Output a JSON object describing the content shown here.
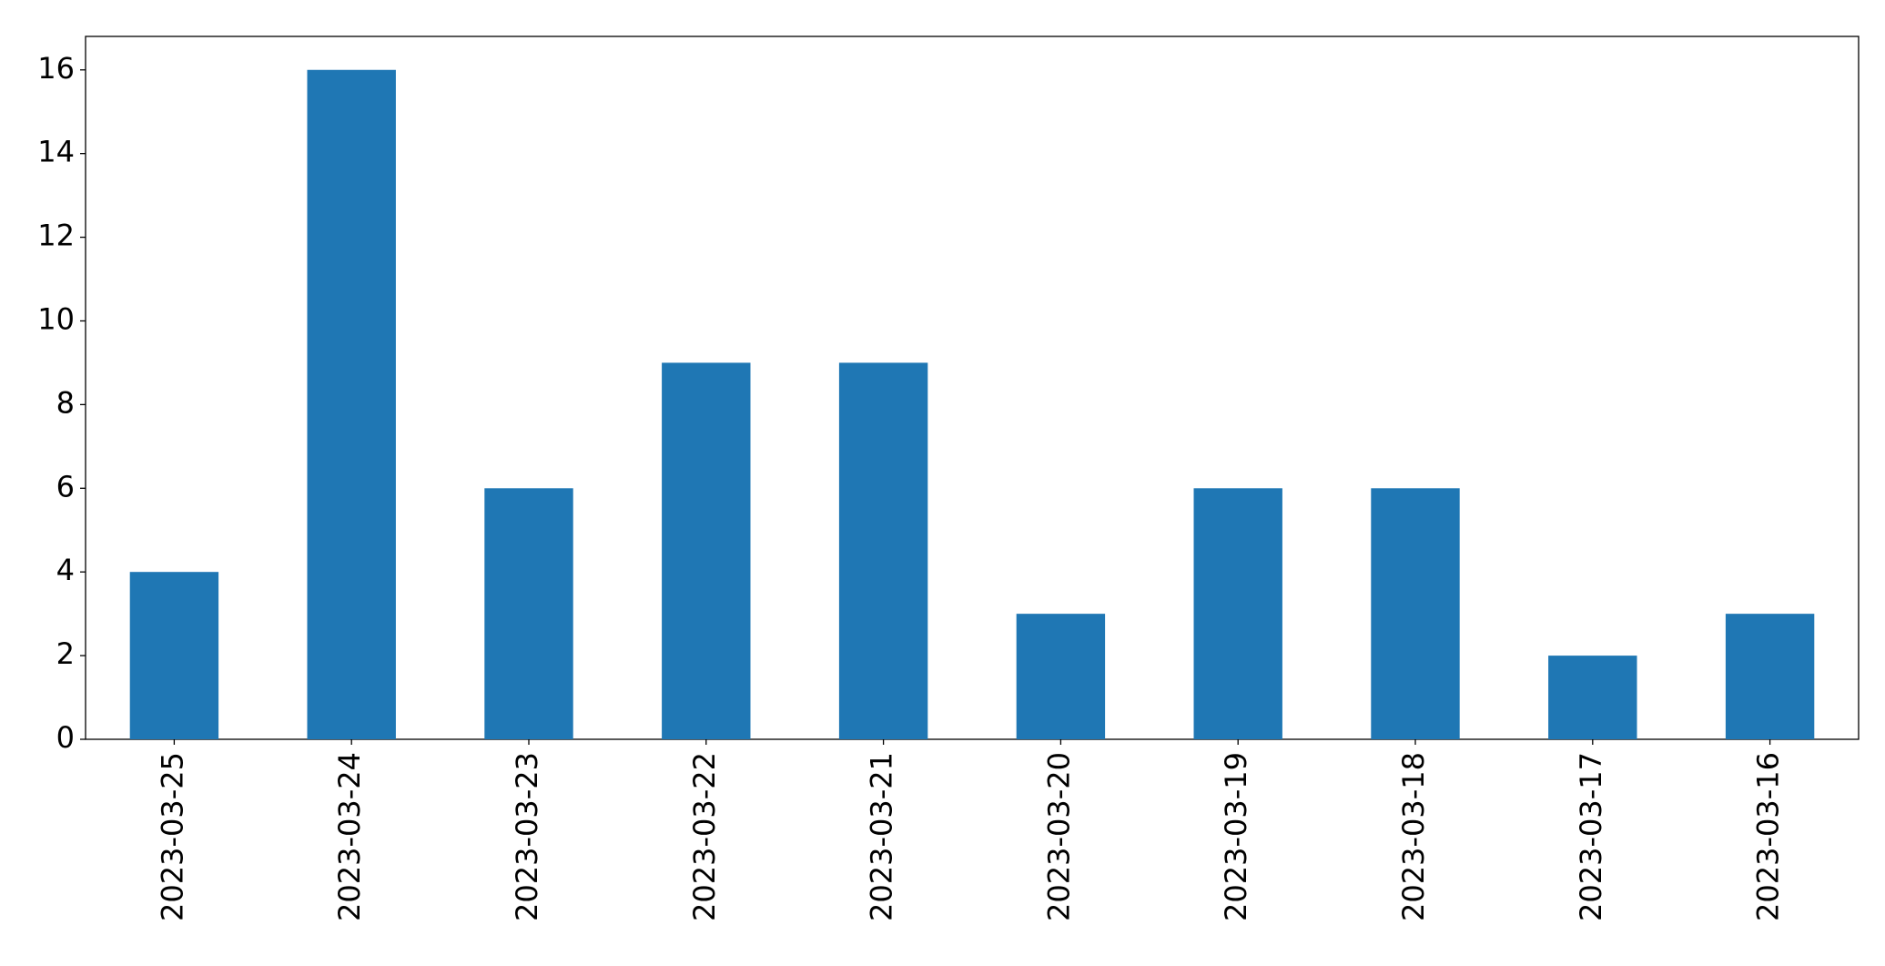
{
  "chart_data": {
    "type": "bar",
    "categories": [
      "2023-03-25",
      "2023-03-24",
      "2023-03-23",
      "2023-03-22",
      "2023-03-21",
      "2023-03-20",
      "2023-03-19",
      "2023-03-18",
      "2023-03-17",
      "2023-03-16"
    ],
    "values": [
      4,
      16,
      6,
      9,
      9,
      3,
      6,
      6,
      2,
      3
    ],
    "color": "#1f77b4",
    "ylim": [
      0,
      16.8
    ],
    "yticks": [
      0,
      2,
      4,
      6,
      8,
      10,
      12,
      14,
      16
    ],
    "grid": false
  }
}
